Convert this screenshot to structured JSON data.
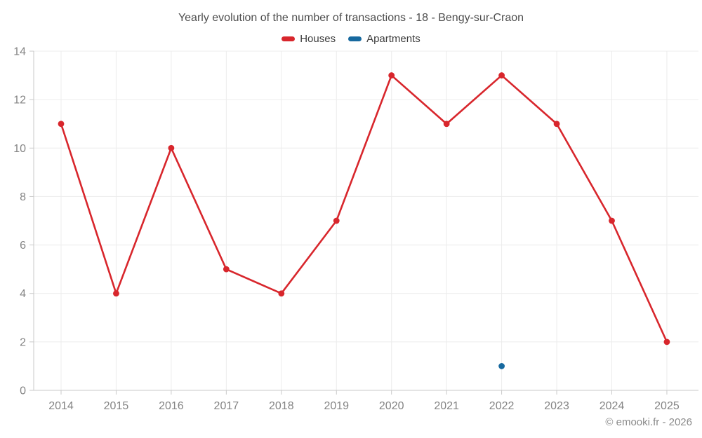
{
  "header": {
    "title": "Yearly evolution of the number of transactions - 18 - Bengy-sur-Craon"
  },
  "legend": {
    "items": [
      {
        "label": "Houses",
        "color": "#d8262c"
      },
      {
        "label": "Apartments",
        "color": "#17699f"
      }
    ]
  },
  "chart_data": {
    "type": "line",
    "title": "Yearly evolution of the number of transactions - 18 - Bengy-sur-Craon",
    "categories": [
      "2014",
      "2015",
      "2016",
      "2017",
      "2018",
      "2019",
      "2020",
      "2021",
      "2022",
      "2023",
      "2024",
      "2025"
    ],
    "series": [
      {
        "name": "Houses",
        "color": "#d8262c",
        "values": [
          11,
          4,
          10,
          5,
          4,
          7,
          13,
          11,
          13,
          11,
          7,
          2
        ]
      },
      {
        "name": "Apartments",
        "color": "#17699f",
        "values": [
          null,
          null,
          null,
          null,
          null,
          null,
          null,
          null,
          1,
          null,
          null,
          null
        ]
      }
    ],
    "xlabel": "",
    "ylabel": "",
    "ylim": [
      0,
      14
    ],
    "ytick_step": 2,
    "grid": true,
    "legend_position": "top"
  },
  "colors": {
    "houses": "#d8262c",
    "apartments": "#17699f",
    "grid": "#ececec",
    "axis": "#c9c9c9",
    "tick_label": "#848484",
    "title_text": "#4e4e4e",
    "legend_text": "#3c3c3c",
    "copyright_text": "#8a8a8a"
  },
  "footer": {
    "copyright": "© emooki.fr - 2026"
  }
}
